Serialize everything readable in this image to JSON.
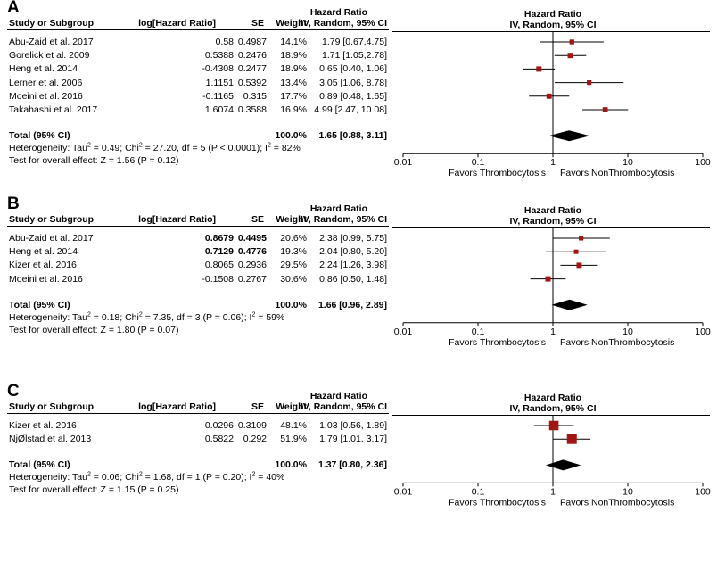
{
  "colors": {
    "square": "#a31515",
    "line": "#000000",
    "diamond": "#000000"
  },
  "axis": {
    "ticks": [
      0.01,
      0.1,
      1,
      10,
      100
    ],
    "tick_labels": [
      "0.01",
      "0.1",
      "1",
      "10",
      "100"
    ],
    "favors_left": "Favors Thrombocytosis",
    "favors_right": "Favors NonThrombocytosis"
  },
  "headers": {
    "study": "Study or Subgroup",
    "loghr": "log[Hazard Ratio]",
    "se": "SE",
    "weight": "Weight",
    "hr_line1": "Hazard Ratio",
    "hr_line2": "IV, Random, 95% CI",
    "plot_line1": "Hazard Ratio",
    "plot_line2": "IV, Random, 95% CI"
  },
  "chart_data": [
    {
      "type": "forest",
      "panel": "A",
      "xscale": "log",
      "xlim": [
        0.01,
        100
      ],
      "studies": [
        {
          "name": "Abu-Zaid et al. 2017",
          "loghr": "0.58",
          "se": "0.4987",
          "weight": "14.1%",
          "ci_text": "1.79 [0.67,4.75]",
          "hr": 1.79,
          "lo": 0.67,
          "hi": 4.75,
          "w": 14.1,
          "bold": false
        },
        {
          "name": "Gorelick et al. 2009",
          "loghr": "0.5388",
          "se": "0.2476",
          "weight": "18.9%",
          "ci_text": "1.71 [1.05,2.78]",
          "hr": 1.71,
          "lo": 1.05,
          "hi": 2.78,
          "w": 18.9,
          "bold": false
        },
        {
          "name": "Heng et al. 2014",
          "loghr": "-0.4308",
          "se": "0.2477",
          "weight": "18.9%",
          "ci_text": "0.65 [0.40, 1.06]",
          "hr": 0.65,
          "lo": 0.4,
          "hi": 1.06,
          "w": 18.9,
          "bold": false
        },
        {
          "name": "Lerner et al. 2006",
          "loghr": "1.1151",
          "se": "0.5392",
          "weight": "13.4%",
          "ci_text": "3.05 [1.06, 8.78]",
          "hr": 3.05,
          "lo": 1.06,
          "hi": 8.78,
          "w": 13.4,
          "bold": false
        },
        {
          "name": "Moeini et al. 2016",
          "loghr": "-0.1165",
          "se": "0.315",
          "weight": "17.7%",
          "ci_text": "0.89 [0.48, 1.65]",
          "hr": 0.89,
          "lo": 0.48,
          "hi": 1.65,
          "w": 17.7,
          "bold": false
        },
        {
          "name": "Takahashi et al. 2017",
          "loghr": "1.6074",
          "se": "0.3588",
          "weight": "16.9%",
          "ci_text": "4.99 [2.47, 10.08]",
          "hr": 4.99,
          "lo": 2.47,
          "hi": 10.08,
          "w": 16.9,
          "bold": false
        }
      ],
      "total": {
        "label": "Total (95% CI)",
        "weight": "100.0%",
        "ci_text": "1.65 [0.88, 3.11]",
        "hr": 1.65,
        "lo": 0.88,
        "hi": 3.11
      },
      "heterogeneity": {
        "prefix": "Heterogeneity: Tau",
        "mid": " = 0.49; Chi",
        "mid2": " = 27.20, df = 5 (P < 0.0001); I",
        "end": " = 82%"
      },
      "overall_effect": "Test for overall effect: Z = 1.56 (P = 0.12)"
    },
    {
      "type": "forest",
      "panel": "B",
      "xscale": "log",
      "xlim": [
        0.01,
        100
      ],
      "studies": [
        {
          "name": "Abu-Zaid et al. 2017",
          "loghr": "0.8679",
          "se": "0.4495",
          "weight": "20.6%",
          "ci_text": "2.38 [0.99, 5.75]",
          "hr": 2.38,
          "lo": 0.99,
          "hi": 5.75,
          "w": 20.6,
          "bold": true
        },
        {
          "name": "Heng et al. 2014",
          "loghr": "0.7129",
          "se": "0.4776",
          "weight": "19.3%",
          "ci_text": "2.04 [0.80, 5.20]",
          "hr": 2.04,
          "lo": 0.8,
          "hi": 5.2,
          "w": 19.3,
          "bold": true
        },
        {
          "name": "Kizer et al. 2016",
          "loghr": "0.8065",
          "se": "0.2936",
          "weight": "29.5%",
          "ci_text": "2.24 [1.26, 3.98]",
          "hr": 2.24,
          "lo": 1.26,
          "hi": 3.98,
          "w": 29.5,
          "bold": false
        },
        {
          "name": "Moeini et al. 2016",
          "loghr": "-0.1508",
          "se": "0.2767",
          "weight": "30.6%",
          "ci_text": "0.86 [0.50, 1.48]",
          "hr": 0.86,
          "lo": 0.5,
          "hi": 1.48,
          "w": 30.6,
          "bold": false
        }
      ],
      "total": {
        "label": "Total (95% CI)",
        "weight": "100.0%",
        "ci_text": "1.66 [0.96, 2.89]",
        "hr": 1.66,
        "lo": 0.96,
        "hi": 2.89
      },
      "heterogeneity": {
        "prefix": "Heterogeneity: Tau",
        "mid": " = 0.18; Chi",
        "mid2": " = 7.35, df = 3 (P = 0.06); I",
        "end": " = 59%"
      },
      "overall_effect": "Test for overall effect: Z = 1.80 (P = 0.07)"
    },
    {
      "type": "forest",
      "panel": "C",
      "xscale": "log",
      "xlim": [
        0.01,
        100
      ],
      "studies": [
        {
          "name": "Kizer et al. 2016",
          "loghr": "0.0296",
          "se": "0.3109",
          "weight": "48.1%",
          "ci_text": "1.03 [0.56, 1.89]",
          "hr": 1.03,
          "lo": 0.56,
          "hi": 1.89,
          "w": 48.1,
          "bold": false
        },
        {
          "name": "NjØlstad et al. 2013",
          "loghr": "0.5822",
          "se": "0.292",
          "weight": "51.9%",
          "ci_text": "1.79 [1.01, 3.17]",
          "hr": 1.79,
          "lo": 1.01,
          "hi": 3.17,
          "w": 51.9,
          "bold": false
        }
      ],
      "total": {
        "label": "Total (95% CI)",
        "weight": "100.0%",
        "ci_text": "1.37 [0.80, 2.36]",
        "hr": 1.37,
        "lo": 0.8,
        "hi": 2.36
      },
      "heterogeneity": {
        "prefix": "Heterogeneity: Tau",
        "mid": " = 0.06; Chi",
        "mid2": " = 1.68, df = 1 (P = 0.20); I",
        "end": " = 40%"
      },
      "overall_effect": "Test for overall effect: Z = 1.15 (P = 0.25)"
    }
  ]
}
